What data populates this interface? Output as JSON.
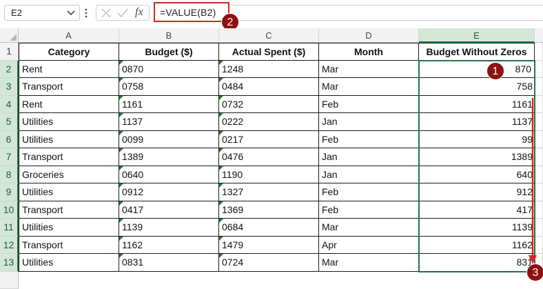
{
  "formula_bar": {
    "name_box": "E2",
    "fx_label": "fx",
    "formula": "=VALUE(B2)"
  },
  "badges": {
    "one": "1",
    "two": "2",
    "three": "3"
  },
  "columns": [
    "A",
    "B",
    "C",
    "D",
    "E"
  ],
  "rows": [
    "1",
    "2",
    "3",
    "4",
    "5",
    "6",
    "7",
    "8",
    "9",
    "10",
    "11",
    "12",
    "13"
  ],
  "table": {
    "headers": [
      "Category",
      "Budget ($)",
      "Actual Spent ($)",
      "Month",
      "Budget Without Zeros"
    ],
    "data": [
      [
        "Rent",
        "0870",
        "1248",
        "Mar",
        "870"
      ],
      [
        "Transport",
        "0758",
        "0484",
        "Mar",
        "758"
      ],
      [
        "Rent",
        "1161",
        "0732",
        "Feb",
        "1161"
      ],
      [
        "Utilities",
        "1137",
        "0222",
        "Jan",
        "1137"
      ],
      [
        "Utilities",
        "0099",
        "0217",
        "Feb",
        "99"
      ],
      [
        "Transport",
        "1389",
        "0476",
        "Jan",
        "1389"
      ],
      [
        "Groceries",
        "0640",
        "1190",
        "Jan",
        "640"
      ],
      [
        "Utilities",
        "0912",
        "1327",
        "Feb",
        "912"
      ],
      [
        "Transport",
        "0417",
        "1369",
        "Feb",
        "417"
      ],
      [
        "Utilities",
        "1139",
        "0684",
        "Mar",
        "1139"
      ],
      [
        "Transport",
        "1162",
        "1479",
        "Apr",
        "1162"
      ],
      [
        "Utilities",
        "0831",
        "0724",
        "Mar",
        "831"
      ]
    ]
  },
  "colors": {
    "accent": "#217346",
    "highlight_red": "#d9261c",
    "badge": "#8f1010"
  }
}
